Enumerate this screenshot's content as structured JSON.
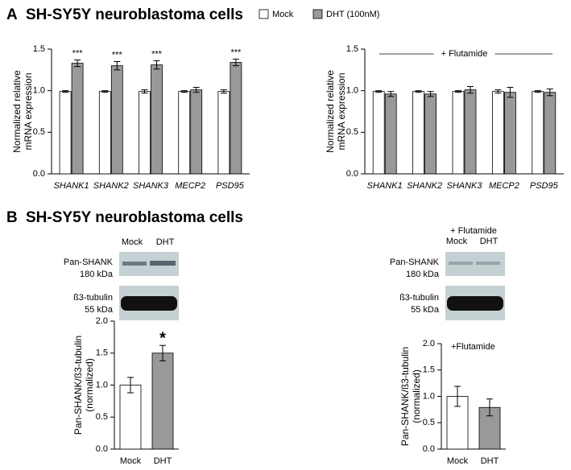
{
  "panels": [
    {
      "label": "A",
      "title": "SH-SY5Y neuroblastoma cells"
    },
    {
      "label": "B",
      "title": "SH-SY5Y neuroblastoma cells"
    }
  ],
  "blots": [
    {
      "lanes": [
        "Mock",
        "DHT"
      ],
      "rows": [
        {
          "protein": "Pan-SHANK",
          "size": "180 kDa"
        },
        {
          "protein": "ß3-tubulin",
          "size": "55 kDa"
        }
      ]
    },
    {
      "treatment": "+ Flutamide",
      "lanes": [
        "Mock",
        "DHT"
      ],
      "rows": [
        {
          "protein": "Pan-SHANK",
          "size": "180 kDa"
        },
        {
          "protein": "ß3-tubulin",
          "size": "55 kDa"
        }
      ]
    }
  ],
  "chart_data": [
    {
      "type": "bar",
      "ylabel": [
        "Normalized relative",
        "mRNA expression"
      ],
      "categories": [
        "SHANK1",
        "SHANK2",
        "SHANK3",
        "MECP2",
        "PSD95"
      ],
      "series": [
        {
          "name": "Mock",
          "color": "#ffffff",
          "values": [
            0.99,
            0.99,
            0.99,
            0.99,
            0.99
          ],
          "errors": [
            0.01,
            0.01,
            0.02,
            0.01,
            0.02
          ]
        },
        {
          "name": "DHT (100nM)",
          "color": "#999999",
          "values": [
            1.33,
            1.3,
            1.31,
            1.01,
            1.34
          ],
          "errors": [
            0.04,
            0.05,
            0.05,
            0.03,
            0.04
          ]
        }
      ],
      "significance": [
        "***",
        "***",
        "***",
        null,
        "***"
      ],
      "ylim": [
        0,
        1.5
      ],
      "yticks": [
        {
          "value": 0,
          "label": "0.0"
        },
        {
          "value": 0.5,
          "label": "0.5"
        },
        {
          "value": 1,
          "label": "1.0"
        },
        {
          "value": 1.5,
          "label": "1.5"
        }
      ]
    },
    {
      "type": "bar",
      "ylabel": [
        "Normalized relative",
        "mRNA expression"
      ],
      "annotation": "+ Flutamide",
      "categories": [
        "SHANK1",
        "SHANK2",
        "SHANK3",
        "MECP2",
        "PSD95"
      ],
      "series": [
        {
          "color": "#ffffff",
          "values": [
            0.99,
            0.99,
            0.99,
            0.99,
            0.99
          ],
          "errors": [
            0.01,
            0.01,
            0.01,
            0.02,
            0.01
          ]
        },
        {
          "color": "#999999",
          "values": [
            0.96,
            0.96,
            1.01,
            0.98,
            0.98
          ],
          "errors": [
            0.03,
            0.03,
            0.04,
            0.06,
            0.04
          ]
        }
      ],
      "ylim": [
        0,
        1.5
      ],
      "yticks": [
        {
          "value": 0,
          "label": "0.0"
        },
        {
          "value": 0.5,
          "label": "0.5"
        },
        {
          "value": 1,
          "label": "1.0"
        },
        {
          "value": 1.5,
          "label": "1.5"
        }
      ]
    },
    {
      "type": "bar",
      "ylabel": [
        "Pan-SHANK/ß3-tubulin",
        "(normalized)"
      ],
      "categories": [
        "Mock",
        "DHT"
      ],
      "values": [
        1.0,
        1.5
      ],
      "errors": [
        0.12,
        0.12
      ],
      "colors": [
        "#ffffff",
        "#999999"
      ],
      "significance": [
        null,
        "*"
      ],
      "ylim": [
        0,
        2
      ],
      "yticks": [
        {
          "value": 0,
          "label": "0.0"
        },
        {
          "value": 0.5,
          "label": "0.5"
        },
        {
          "value": 1,
          "label": "1.0"
        },
        {
          "value": 1.5,
          "label": "1.5"
        },
        {
          "value": 2,
          "label": "2.0"
        }
      ]
    },
    {
      "type": "bar",
      "ylabel": [
        "Pan-SHANK/ß3-tubulin",
        "(normalized)"
      ],
      "annotation": "+Flutamide",
      "categories": [
        "Mock",
        "DHT"
      ],
      "values": [
        1.0,
        0.79
      ],
      "errors": [
        0.19,
        0.16
      ],
      "colors": [
        "#ffffff",
        "#999999"
      ],
      "ylim": [
        0,
        2
      ],
      "yticks": [
        {
          "value": 0,
          "label": "0.0"
        },
        {
          "value": 0.5,
          "label": "0.5"
        },
        {
          "value": 1,
          "label": "1.0"
        },
        {
          "value": 1.5,
          "label": "1.5"
        },
        {
          "value": 2,
          "label": "2.0"
        }
      ]
    }
  ]
}
